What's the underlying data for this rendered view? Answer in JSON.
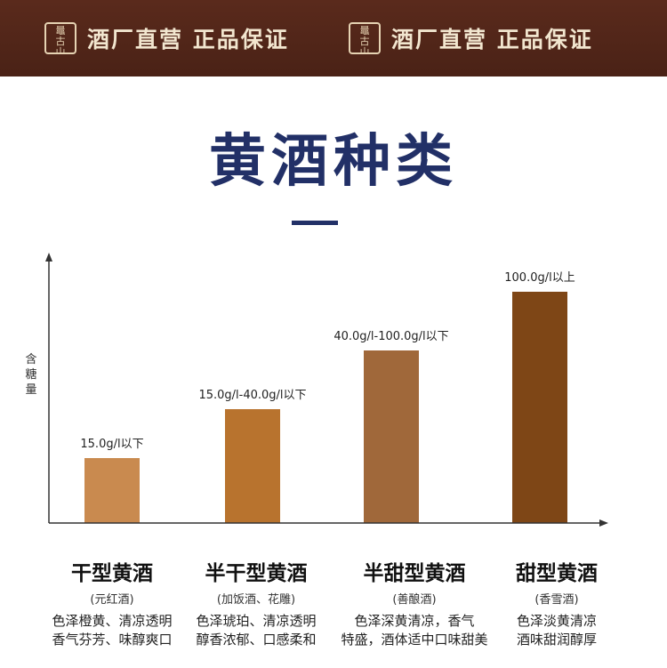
{
  "banner": {
    "logo_chars": [
      "鼂",
      "古",
      "山",
      "越"
    ],
    "slogan": "酒厂直营  正品保证"
  },
  "page_title": "黄酒种类",
  "chart_data": {
    "type": "bar",
    "ylabel": "含糖量",
    "categories": [
      "干型黄酒",
      "半干型黄酒",
      "半甜型黄酒",
      "甜型黄酒"
    ],
    "values": [
      15,
      40,
      70,
      100
    ],
    "data_labels": [
      "15.0g/l以下",
      "15.0g/l-40.0g/l以下",
      "40.0g/l-100.0g/l以下",
      "100.0g/l以上"
    ],
    "colors": [
      "#c98a4f",
      "#b8732e",
      "#a0683a",
      "#7e4616"
    ],
    "ylim": [
      0,
      100
    ]
  },
  "categories": [
    {
      "name": "干型黄酒",
      "sub": "(元红酒)",
      "desc1": "色泽橙黄、清凉透明",
      "desc2": "香气芬芳、味醇爽口"
    },
    {
      "name": "半干型黄酒",
      "sub": "(加饭酒、花雕)",
      "desc1": "色泽琥珀、清凉透明",
      "desc2": "醇香浓郁、口感柔和"
    },
    {
      "name": "半甜型黄酒",
      "sub": "(善酿酒)",
      "desc1": "色泽深黄清凉，香气",
      "desc2": "特盛，酒体适中口味甜美"
    },
    {
      "name": "甜型黄酒",
      "sub": "(香雪酒)",
      "desc1": "色泽淡黄清凉",
      "desc2": "酒味甜润醇厚"
    }
  ]
}
